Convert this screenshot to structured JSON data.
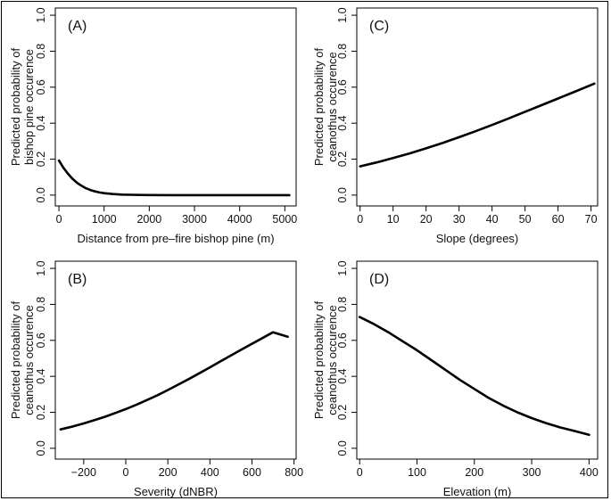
{
  "chart_data": [
    {
      "id": "A",
      "type": "line",
      "panel_label": "(A)",
      "xlabel": "Distance from pre–fire bishop pine (m)",
      "ylabel_lines": [
        "Predicted probability of",
        "bishop pine occurence"
      ],
      "xlim": [
        -80,
        5250
      ],
      "ylim": [
        -0.06,
        1.04
      ],
      "xticks": [
        0,
        1000,
        2000,
        3000,
        4000,
        5000
      ],
      "xtick_labels": [
        "0",
        "1000",
        "2000",
        "3000",
        "4000",
        "5000"
      ],
      "yticks": [
        0.0,
        0.2,
        0.4,
        0.6,
        0.8,
        1.0
      ],
      "ytick_labels": [
        "0.0",
        "0.2",
        "0.4",
        "0.6",
        "0.8",
        "1.0"
      ],
      "series": [
        {
          "name": "predicted",
          "x": [
            0,
            100,
            200,
            300,
            400,
            500,
            600,
            700,
            800,
            900,
            1000,
            1200,
            1400,
            1600,
            1800,
            2000,
            2500,
            3000,
            3500,
            4000,
            4500,
            5100
          ],
          "y": [
            0.192,
            0.152,
            0.119,
            0.091,
            0.069,
            0.052,
            0.038,
            0.028,
            0.021,
            0.015,
            0.011,
            0.006,
            0.003,
            0.002,
            0.001,
            0.0005,
            0.0,
            0.0,
            0.0,
            0.0,
            0.0,
            0.0
          ]
        }
      ]
    },
    {
      "id": "C",
      "type": "line",
      "panel_label": "(C)",
      "xlabel": "Slope (degrees)",
      "ylabel_lines": [
        "Predicted probability of",
        "ceanothus occurence"
      ],
      "xlim": [
        -1,
        72
      ],
      "ylim": [
        -0.06,
        1.04
      ],
      "xticks": [
        0,
        10,
        20,
        30,
        40,
        50,
        60,
        70
      ],
      "xtick_labels": [
        "0",
        "10",
        "20",
        "30",
        "40",
        "50",
        "60",
        "70"
      ],
      "yticks": [
        0.0,
        0.2,
        0.4,
        0.6,
        0.8,
        1.0
      ],
      "ytick_labels": [
        "0.0",
        "0.2",
        "0.4",
        "0.6",
        "0.8",
        "1.0"
      ],
      "series": [
        {
          "name": "predicted",
          "x": [
            0,
            5,
            10,
            15,
            20,
            25,
            30,
            35,
            40,
            45,
            50,
            55,
            60,
            65,
            71
          ],
          "y": [
            0.16,
            0.182,
            0.206,
            0.232,
            0.26,
            0.29,
            0.322,
            0.355,
            0.39,
            0.426,
            0.463,
            0.5,
            0.537,
            0.574,
            0.62
          ]
        }
      ]
    },
    {
      "id": "B",
      "type": "line",
      "panel_label": "(B)",
      "xlabel": "Severity (dNBR)",
      "ylabel_lines": [
        "Predicted probability of",
        "ceanothus occurence"
      ],
      "xlim": [
        -335,
        810
      ],
      "ylim": [
        -0.06,
        1.04
      ],
      "xticks": [
        -200,
        0,
        200,
        400,
        600,
        800
      ],
      "xtick_labels": [
        "−200",
        "0",
        "200",
        "400",
        "600",
        "800"
      ],
      "yticks": [
        0.0,
        0.2,
        0.4,
        0.6,
        0.8,
        1.0
      ],
      "ytick_labels": [
        "0.0",
        "0.2",
        "0.4",
        "0.6",
        "0.8",
        "1.0"
      ],
      "series": [
        {
          "name": "predicted",
          "x": [
            -310,
            -250,
            -200,
            -150,
            -100,
            -50,
            0,
            50,
            100,
            150,
            200,
            250,
            300,
            350,
            400,
            450,
            500,
            550,
            600,
            650,
            700,
            770
          ],
          "y": [
            0.105,
            0.122,
            0.138,
            0.156,
            0.175,
            0.196,
            0.218,
            0.242,
            0.268,
            0.295,
            0.324,
            0.354,
            0.385,
            0.417,
            0.45,
            0.483,
            0.516,
            0.549,
            0.581,
            0.613,
            0.645,
            0.62
          ]
        }
      ]
    },
    {
      "id": "D",
      "type": "line",
      "panel_label": "(D)",
      "xlabel": "Elevation (m)",
      "ylabel_lines": [
        "Predicted probability of",
        "ceanothus occurence"
      ],
      "xlim": [
        -5,
        415
      ],
      "ylim": [
        -0.06,
        1.04
      ],
      "xticks": [
        0,
        100,
        200,
        300,
        400
      ],
      "xtick_labels": [
        "0",
        "100",
        "200",
        "300",
        "400"
      ],
      "yticks": [
        0.0,
        0.2,
        0.4,
        0.6,
        0.8,
        1.0
      ],
      "ytick_labels": [
        "0.0",
        "0.2",
        "0.4",
        "0.6",
        "0.8",
        "1.0"
      ],
      "series": [
        {
          "name": "predicted",
          "x": [
            0,
            25,
            50,
            75,
            100,
            125,
            150,
            175,
            200,
            225,
            250,
            275,
            300,
            325,
            350,
            375,
            400
          ],
          "y": [
            0.73,
            0.69,
            0.645,
            0.595,
            0.545,
            0.49,
            0.435,
            0.38,
            0.33,
            0.28,
            0.238,
            0.2,
            0.168,
            0.14,
            0.116,
            0.096,
            0.075
          ]
        }
      ]
    }
  ]
}
